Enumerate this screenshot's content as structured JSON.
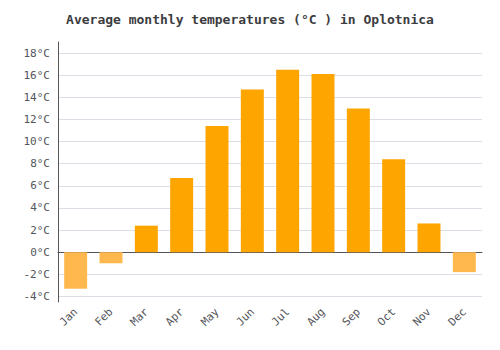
{
  "chart_data": {
    "type": "bar",
    "title": "Average monthly temperatures (°C ) in Oplotnica",
    "categories": [
      "Jan",
      "Feb",
      "Mar",
      "Apr",
      "May",
      "Jun",
      "Jul",
      "Aug",
      "Sep",
      "Oct",
      "Nov",
      "Dec"
    ],
    "values": [
      -3.3,
      -1.0,
      2.4,
      6.7,
      11.4,
      14.7,
      16.5,
      16.1,
      13.0,
      8.4,
      2.6,
      -1.8
    ],
    "colors": [
      "#FFB84D",
      "#FFB84D",
      "#FFA500",
      "#FFA500",
      "#FFA500",
      "#FFA500",
      "#FFA500",
      "#FFA500",
      "#FFA500",
      "#FFA500",
      "#FFA500",
      "#FFB84D"
    ],
    "ylim": [
      -4.5,
      19
    ],
    "yticks": [
      {
        "value": -4,
        "label": "-4°C"
      },
      {
        "value": -2,
        "label": "-2°C"
      },
      {
        "value": 0,
        "label": "0°C"
      },
      {
        "value": 2,
        "label": "2°C"
      },
      {
        "value": 4,
        "label": "4°C"
      },
      {
        "value": 6,
        "label": "6°C"
      },
      {
        "value": 8,
        "label": "8°C"
      },
      {
        "value": 10,
        "label": "10°C"
      },
      {
        "value": 12,
        "label": "12°C"
      },
      {
        "value": 14,
        "label": "14°C"
      },
      {
        "value": 16,
        "label": "16°C"
      },
      {
        "value": 18,
        "label": "18°C"
      }
    ],
    "grid": true
  }
}
